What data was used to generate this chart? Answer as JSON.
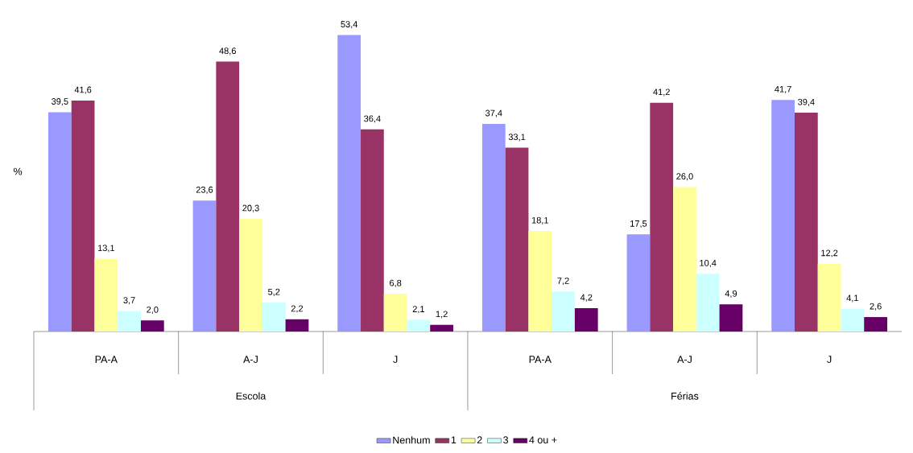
{
  "chart_data": {
    "type": "bar",
    "ylabel": "%",
    "categories": [
      "PA-A",
      "A-J",
      "J",
      "PA-A",
      "A-J",
      "J"
    ],
    "annotations": [
      "Escola",
      "Férias"
    ],
    "legend": "bottom",
    "series": [
      {
        "name": "Nenhum",
        "color": "#9999ff",
        "values": [
          39.5,
          23.6,
          53.4,
          37.4,
          17.5,
          41.7
        ],
        "value_labels": [
          "39,5",
          "23,6",
          "53,4",
          "37,4",
          "17,5",
          "41,7"
        ]
      },
      {
        "name": "1",
        "color": "#993366",
        "values": [
          41.6,
          48.6,
          36.4,
          33.1,
          41.2,
          39.4
        ],
        "value_labels": [
          "41,6",
          "48,6",
          "36,4",
          "33,1",
          "41,2",
          "39,4"
        ]
      },
      {
        "name": "2",
        "color": "#ffff99",
        "values": [
          13.1,
          20.3,
          6.8,
          18.1,
          26.0,
          12.2
        ],
        "value_labels": [
          "13,1",
          "20,3",
          "6,8",
          "18,1",
          "26,0",
          "12,2"
        ]
      },
      {
        "name": "3",
        "color": "#ccffff",
        "values": [
          3.7,
          5.2,
          2.1,
          7.2,
          10.4,
          4.1
        ],
        "value_labels": [
          "3,7",
          "5,2",
          "2,1",
          "7,2",
          "10,4",
          "4,1"
        ]
      },
      {
        "name": "4 ou +",
        "color": "#660066",
        "values": [
          2.0,
          2.2,
          1.2,
          4.2,
          4.9,
          2.6
        ],
        "value_labels": [
          "2,0",
          "2,2",
          "1,2",
          "4,2",
          "4,9",
          "2,6"
        ]
      }
    ]
  }
}
